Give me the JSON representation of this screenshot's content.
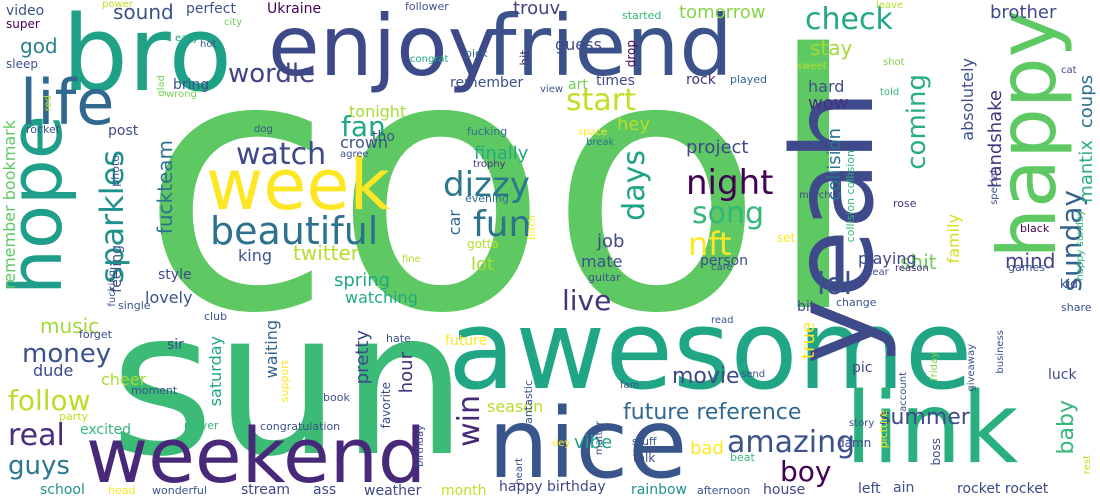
{
  "words": [
    {
      "text": "cool",
      "color": "#5ec962"
    },
    {
      "text": "sun",
      "color": "#3bbb75"
    },
    {
      "text": "awesome",
      "color": "#21a685"
    },
    {
      "text": "bro",
      "color": "#1fa187"
    },
    {
      "text": "enjoy",
      "color": "#3e4989"
    },
    {
      "text": "friend",
      "color": "#3b528b"
    },
    {
      "text": "yeah",
      "color": "#3e4a89"
    },
    {
      "text": "happy",
      "color": "#5ec962"
    },
    {
      "text": "hope",
      "color": "#1f9e89"
    },
    {
      "text": "life",
      "color": "#31688e"
    },
    {
      "text": "week",
      "color": "#fde725"
    },
    {
      "text": "weekend",
      "color": "#482878"
    },
    {
      "text": "nice",
      "color": "#39568c"
    },
    {
      "text": "link",
      "color": "#2ab07f"
    },
    {
      "text": "beautiful",
      "color": "#2c728e"
    },
    {
      "text": "dizzy",
      "color": "#2a788e"
    },
    {
      "text": "fun",
      "color": "#2c738e"
    },
    {
      "text": "night",
      "color": "#440154"
    },
    {
      "text": "nft",
      "color": "#fde725"
    },
    {
      "text": "song",
      "color": "#35b779"
    },
    {
      "text": "watch",
      "color": "#3e4989"
    },
    {
      "text": "wordle",
      "color": "#414487"
    },
    {
      "text": "start",
      "color": "#c2df23"
    },
    {
      "text": "check",
      "color": "#22a884"
    },
    {
      "text": "sparkles",
      "color": "#21918c"
    },
    {
      "text": "days",
      "color": "#20a486"
    },
    {
      "text": "coming",
      "color": "#29af7f"
    },
    {
      "text": "fan",
      "color": "#22a884"
    },
    {
      "text": "lol",
      "color": "#3b528b"
    },
    {
      "text": "live",
      "color": "#46337e"
    },
    {
      "text": "amazing",
      "color": "#3b528b"
    },
    {
      "text": "boy",
      "color": "#440154"
    },
    {
      "text": "money",
      "color": "#3b528b"
    },
    {
      "text": "follow",
      "color": "#b8de29"
    },
    {
      "text": "real",
      "color": "#472d7b"
    },
    {
      "text": "guys",
      "color": "#2a788e"
    },
    {
      "text": "sunday",
      "color": "#33638d"
    },
    {
      "text": "win",
      "color": "#482878"
    },
    {
      "text": "future reference",
      "color": "#31688e"
    },
    {
      "text": "movie",
      "color": "#3e4989"
    },
    {
      "text": "music",
      "color": "#a2da37"
    },
    {
      "text": "summer",
      "color": "#3e4a89"
    },
    {
      "text": "shit",
      "color": "#6ece58"
    },
    {
      "text": "mind",
      "color": "#414487"
    },
    {
      "text": "baby",
      "color": "#35b779"
    },
    {
      "text": "god",
      "color": "#26828e"
    },
    {
      "text": "sound",
      "color": "#3b528b"
    },
    {
      "text": "tomorrow",
      "color": "#86d549"
    },
    {
      "text": "brother",
      "color": "#3e4a89"
    },
    {
      "text": "coups",
      "color": "#2c728e"
    },
    {
      "text": "mantix",
      "color": "#29af7f"
    },
    {
      "text": "trouv",
      "color": "#424086"
    },
    {
      "text": "guess",
      "color": "#3e4989"
    },
    {
      "text": "stay",
      "color": "#a2da37"
    },
    {
      "text": "handshake",
      "color": "#46337e"
    },
    {
      "text": "absolutely",
      "color": "#3b528b"
    },
    {
      "text": "hard",
      "color": "#3b528b"
    },
    {
      "text": "wow",
      "color": "#46337e"
    },
    {
      "text": "tonight",
      "color": "#a8db34"
    },
    {
      "text": "hey",
      "color": "#b5de2b"
    },
    {
      "text": "finally",
      "color": "#22a884"
    },
    {
      "text": "project",
      "color": "#3e4989"
    },
    {
      "text": "collision",
      "color": "#2c728e"
    },
    {
      "text": "family",
      "color": "#d0e11c"
    },
    {
      "text": "twitter",
      "color": "#b5de2b"
    },
    {
      "text": "king",
      "color": "#3b528b"
    },
    {
      "text": "crown",
      "color": "#3b528b"
    },
    {
      "text": "tho",
      "color": "#3b528b"
    },
    {
      "text": "car",
      "color": "#31688e"
    },
    {
      "text": "job",
      "color": "#3e4989"
    },
    {
      "text": "lot",
      "color": "#a8db34"
    },
    {
      "text": "mate",
      "color": "#3b528b"
    },
    {
      "text": "spring",
      "color": "#22a884"
    },
    {
      "text": "watching",
      "color": "#22a884"
    },
    {
      "text": "fuckteam",
      "color": "#2c728e"
    },
    {
      "text": "remember bookmark",
      "color": "#5ec962"
    },
    {
      "text": "lovely",
      "color": "#3b528b"
    },
    {
      "text": "style",
      "color": "#3e4989"
    },
    {
      "text": "feeling",
      "color": "#3b528b"
    },
    {
      "text": "waiting",
      "color": "#33638d"
    },
    {
      "text": "saturday",
      "color": "#20a486"
    },
    {
      "text": "pretty",
      "color": "#3e4989"
    },
    {
      "text": "hour",
      "color": "#46337e"
    },
    {
      "text": "season",
      "color": "#b5de2b"
    },
    {
      "text": "vibe",
      "color": "#20a486"
    },
    {
      "text": "true",
      "color": "#fde725"
    },
    {
      "text": "bad",
      "color": "#fde725"
    },
    {
      "text": "playing",
      "color": "#3e4989"
    },
    {
      "text": "dude",
      "color": "#3e4989"
    },
    {
      "text": "cheer",
      "color": "#a8db34"
    },
    {
      "text": "excited",
      "color": "#35b779"
    },
    {
      "text": "school",
      "color": "#21918c"
    },
    {
      "text": "video",
      "color": "#3b528b"
    },
    {
      "text": "super",
      "color": "#440154"
    },
    {
      "text": "sleep",
      "color": "#3b528b"
    },
    {
      "text": "perfect",
      "color": "#3b528b"
    },
    {
      "text": "Ukraine",
      "color": "#440154"
    },
    {
      "text": "follower",
      "color": "#3b528b"
    },
    {
      "text": "power",
      "color": "#c2df23"
    },
    {
      "text": "city",
      "color": "#6ece58"
    },
    {
      "text": "easy",
      "color": "#22a884"
    },
    {
      "text": "hot",
      "color": "#3b528b"
    },
    {
      "text": "glad",
      "color": "#7ad151"
    },
    {
      "text": "bring",
      "color": "#3b528b"
    },
    {
      "text": "wrong",
      "color": "#7ad151"
    },
    {
      "text": "congrat",
      "color": "#20a486"
    },
    {
      "text": "pick",
      "color": "#31688e"
    },
    {
      "text": "hit",
      "color": "#46337e"
    },
    {
      "text": "drop",
      "color": "#440154"
    },
    {
      "text": "art",
      "color": "#6ece58"
    },
    {
      "text": "times",
      "color": "#3e4989"
    },
    {
      "text": "rock",
      "color": "#46337e"
    },
    {
      "text": "played",
      "color": "#31688e"
    },
    {
      "text": "started",
      "color": "#35b779"
    },
    {
      "text": "shot",
      "color": "#86d549"
    },
    {
      "text": "leave",
      "color": "#b5de2b"
    },
    {
      "text": "sweet",
      "color": "#b5de2b"
    },
    {
      "text": "cat",
      "color": "#3e4989"
    },
    {
      "text": "told",
      "color": "#35b779"
    },
    {
      "text": "remember",
      "color": "#3b528b"
    },
    {
      "text": "view",
      "color": "#3b528b"
    },
    {
      "text": "red",
      "color": "#c2df23"
    },
    {
      "text": "rocket",
      "color": "#3b528b"
    },
    {
      "text": "post",
      "color": "#3e4989"
    },
    {
      "text": "photo",
      "color": "#3b528b"
    },
    {
      "text": "dog",
      "color": "#3b528b"
    },
    {
      "text": "agree",
      "color": "#3b528b"
    },
    {
      "text": "fucking",
      "color": "#2c728e"
    },
    {
      "text": "space",
      "color": "#fde725"
    },
    {
      "text": "break",
      "color": "#2c728e"
    },
    {
      "text": "trophy",
      "color": "#46337e"
    },
    {
      "text": "evening",
      "color": "#31688e"
    },
    {
      "text": "bitch",
      "color": "#fde725"
    },
    {
      "text": "gotta",
      "color": "#b5de2b"
    },
    {
      "text": "march",
      "color": "#3e4989"
    },
    {
      "text": "special",
      "color": "#3b528b"
    },
    {
      "text": "rose",
      "color": "#46337e"
    },
    {
      "text": "collision collision",
      "color": "#35b779"
    },
    {
      "text": "set",
      "color": "#fde725"
    },
    {
      "text": "happy sunday",
      "color": "#35b779"
    },
    {
      "text": "black",
      "color": "#440154"
    },
    {
      "text": "fine",
      "color": "#b5de2b"
    },
    {
      "text": "guitar",
      "color": "#3b528b"
    },
    {
      "text": "person",
      "color": "#3e4989"
    },
    {
      "text": "care",
      "color": "#3b528b"
    },
    {
      "text": "hear",
      "color": "#3b528b"
    },
    {
      "text": "reason",
      "color": "#46337e"
    },
    {
      "text": "games",
      "color": "#3b528b"
    },
    {
      "text": "kid",
      "color": "#3e4989"
    },
    {
      "text": "single",
      "color": "#3b528b"
    },
    {
      "text": "club",
      "color": "#3b528b"
    },
    {
      "text": "sir",
      "color": "#3e4989"
    },
    {
      "text": "forget",
      "color": "#3e4989"
    },
    {
      "text": "hate",
      "color": "#3b528b"
    },
    {
      "text": "future",
      "color": "#fde725"
    },
    {
      "text": "read",
      "color": "#3b528b"
    },
    {
      "text": "bit",
      "color": "#3e4989"
    },
    {
      "text": "change",
      "color": "#3b528b"
    },
    {
      "text": "share",
      "color": "#3b528b"
    },
    {
      "text": "support",
      "color": "#fde725"
    },
    {
      "text": "moment",
      "color": "#3b528b"
    },
    {
      "text": "party",
      "color": "#c2df23"
    },
    {
      "text": "book",
      "color": "#3b528b"
    },
    {
      "text": "favorite",
      "color": "#3e4989"
    },
    {
      "text": "fantastic",
      "color": "#3b528b"
    },
    {
      "text": "fam",
      "color": "#3b528b"
    },
    {
      "text": "send",
      "color": "#3b528b"
    },
    {
      "text": "pic",
      "color": "#3e4989"
    },
    {
      "text": "account",
      "color": "#3b528b"
    },
    {
      "text": "friday",
      "color": "#86d549"
    },
    {
      "text": "giveaway",
      "color": "#3b528b"
    },
    {
      "text": "business",
      "color": "#3b528b"
    },
    {
      "text": "luck",
      "color": "#3e4989"
    },
    {
      "text": "player",
      "color": "#35b779"
    },
    {
      "text": "congratulation",
      "color": "#3b528b"
    },
    {
      "text": "birthday",
      "color": "#3b528b"
    },
    {
      "text": "dey",
      "color": "#fde725"
    },
    {
      "text": "matter",
      "color": "#3b528b"
    },
    {
      "text": "stuff",
      "color": "#3b528b"
    },
    {
      "text": "talk",
      "color": "#3e4989"
    },
    {
      "text": "beat",
      "color": "#35b779"
    },
    {
      "text": "damn",
      "color": "#3e4989"
    },
    {
      "text": "story",
      "color": "#3b528b"
    },
    {
      "text": "boss",
      "color": "#3e4989"
    },
    {
      "text": "picture",
      "color": "#fde725"
    },
    {
      "text": "rest",
      "color": "#c2df23"
    },
    {
      "text": "head",
      "color": "#fde725"
    },
    {
      "text": "wonderful",
      "color": "#3b528b"
    },
    {
      "text": "stream",
      "color": "#3e4989"
    },
    {
      "text": "ass",
      "color": "#3e4989"
    },
    {
      "text": "weather",
      "color": "#3e4989"
    },
    {
      "text": "month",
      "color": "#c2df23"
    },
    {
      "text": "heart",
      "color": "#3b528b"
    },
    {
      "text": "happy birthday",
      "color": "#3e4989"
    },
    {
      "text": "rainbow",
      "color": "#21918c"
    },
    {
      "text": "afternoon",
      "color": "#3b528b"
    },
    {
      "text": "house",
      "color": "#3e4989"
    },
    {
      "text": "left",
      "color": "#3e4989"
    },
    {
      "text": "ain",
      "color": "#3b528b"
    },
    {
      "text": "rocket rocket",
      "color": "#3e4989"
    },
    {
      "text": "fucking",
      "color": "#3b528b"
    }
  ]
}
